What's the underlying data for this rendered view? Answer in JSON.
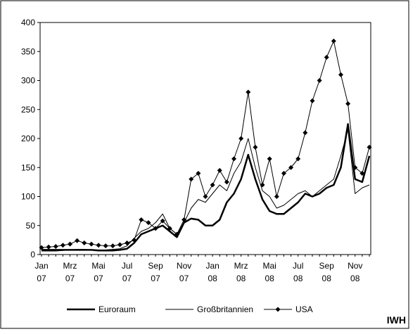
{
  "chart_data": {
    "type": "line",
    "categories": [
      "Jan 07",
      null,
      null,
      null,
      "Mrz 07",
      null,
      null,
      null,
      "Mai 07",
      null,
      null,
      null,
      "Jul 07",
      null,
      null,
      null,
      "Sep 07",
      null,
      null,
      null,
      "Nov 07",
      null,
      null,
      null,
      "Jan 08",
      null,
      null,
      null,
      "Mrz 08",
      null,
      null,
      null,
      "Mai 08",
      null,
      null,
      null,
      "Jul 08",
      null,
      null,
      null,
      "Sep 08",
      null,
      null,
      null,
      "Nov 08",
      null,
      null
    ],
    "series": [
      {
        "name": "Euroraum",
        "color": "#000000",
        "width": 2.5,
        "marker": false,
        "values": [
          8,
          8,
          8,
          8,
          8,
          8,
          8,
          8,
          7,
          7,
          7,
          8,
          10,
          20,
          35,
          40,
          45,
          50,
          40,
          30,
          55,
          62,
          60,
          50,
          50,
          60,
          90,
          105,
          130,
          172,
          130,
          95,
          75,
          70,
          70,
          80,
          90,
          105,
          100,
          105,
          115,
          120,
          150,
          225,
          130,
          125,
          170
        ]
      },
      {
        "name": "Großbritannien",
        "color": "#000000",
        "width": 1,
        "marker": false,
        "values": [
          6,
          6,
          6,
          7,
          8,
          9,
          9,
          8,
          8,
          8,
          9,
          10,
          15,
          28,
          40,
          45,
          55,
          70,
          45,
          35,
          55,
          80,
          95,
          90,
          105,
          120,
          110,
          140,
          160,
          200,
          150,
          110,
          100,
          80,
          85,
          95,
          105,
          110,
          100,
          110,
          120,
          130,
          170,
          215,
          105,
          115,
          120
        ]
      },
      {
        "name": "USA",
        "color": "#000000",
        "width": 1,
        "marker": true,
        "values": [
          12,
          13,
          14,
          16,
          18,
          24,
          20,
          18,
          16,
          15,
          15,
          17,
          20,
          25,
          60,
          55,
          45,
          58,
          45,
          35,
          60,
          130,
          140,
          100,
          120,
          145,
          125,
          165,
          200,
          280,
          185,
          120,
          165,
          100,
          140,
          150,
          165,
          210,
          265,
          300,
          340,
          368,
          310,
          260,
          150,
          140,
          185
        ]
      }
    ],
    "ylim": [
      0,
      400
    ],
    "yticks": [
      0,
      50,
      100,
      150,
      200,
      250,
      300,
      350,
      400
    ],
    "source": "IWH"
  }
}
